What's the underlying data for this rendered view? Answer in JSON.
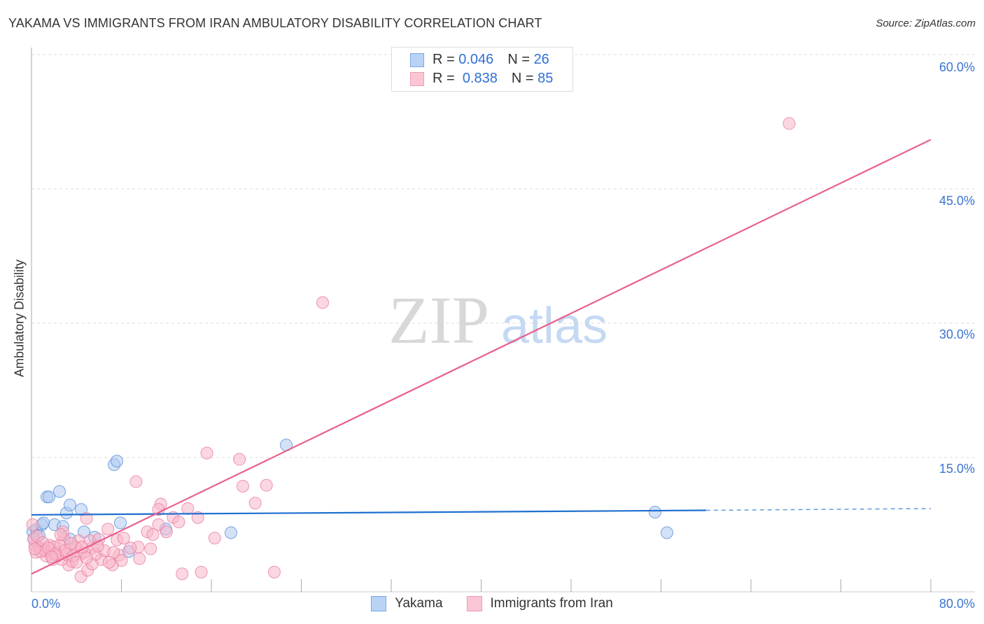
{
  "title": "YAKAMA VS IMMIGRANTS FROM IRAN AMBULATORY DISABILITY CORRELATION CHART",
  "source": "Source: ZipAtlas.com",
  "watermark": "ZIPatlas",
  "legend": {
    "rows": [
      {
        "r_label": "R =",
        "r": "0.046",
        "n_label": "N =",
        "n": "26"
      },
      {
        "r_label": "R =",
        "r": "0.838",
        "n_label": "N =",
        "n": "85"
      }
    ]
  },
  "chart_data": {
    "type": "scatter",
    "title": "YAKAMA VS IMMIGRANTS FROM IRAN AMBULATORY DISABILITY CORRELATION CHART",
    "xlabel": "",
    "ylabel": "Ambulatory Disability",
    "xlim": [
      0,
      80
    ],
    "ylim": [
      0,
      62
    ],
    "x_tick_labels": [
      "0.0%",
      "80.0%"
    ],
    "y_ticks": [
      15,
      30,
      45,
      60
    ],
    "y_tick_labels": [
      "15.0%",
      "30.0%",
      "45.0%",
      "60.0%"
    ],
    "grid": true,
    "legend_position": "bottom",
    "series": [
      {
        "name": "Yakama",
        "color": "#5b8fd8",
        "fill": "#aecbf0",
        "line_color": "#1f6fd0",
        "trend": {
          "x0": 0,
          "y0": 8.6,
          "x1": 60,
          "y1": 9.1,
          "dash_to_x": 80,
          "dash_to_y": 9.3
        },
        "points": [
          [
            0.12,
            6.7
          ],
          [
            0.44,
            6.95
          ],
          [
            0.93,
            7.5
          ],
          [
            1.37,
            10.6
          ],
          [
            1.56,
            10.6
          ],
          [
            2.05,
            7.5
          ],
          [
            2.49,
            11.2
          ],
          [
            2.8,
            7.3
          ],
          [
            3.11,
            8.8
          ],
          [
            3.42,
            9.7
          ],
          [
            4.42,
            9.2
          ],
          [
            4.67,
            6.7
          ],
          [
            5.6,
            6.1
          ],
          [
            7.35,
            14.2
          ],
          [
            7.6,
            14.6
          ],
          [
            7.91,
            7.7
          ],
          [
            8.65,
            4.5
          ],
          [
            11.95,
            7.0
          ],
          [
            17.74,
            6.6
          ],
          [
            22.66,
            16.4
          ],
          [
            55.47,
            8.9
          ],
          [
            56.53,
            6.6
          ],
          [
            0.19,
            5.9
          ],
          [
            0.68,
            6.3
          ],
          [
            1.06,
            7.7
          ],
          [
            3.42,
            5.9
          ]
        ]
      },
      {
        "name": "Immigrants from Iran",
        "color": "#e87ea0",
        "fill": "#f7b6c8",
        "line_color": "#e8608d",
        "trend": {
          "x0": 0,
          "y0": 2.0,
          "x1": 80,
          "y1": 50.5
        },
        "points": [
          [
            67.4,
            52.3
          ],
          [
            25.9,
            32.3
          ],
          [
            15.6,
            15.5
          ],
          [
            18.5,
            14.8
          ],
          [
            9.3,
            12.3
          ],
          [
            18.8,
            11.8
          ],
          [
            20.9,
            11.9
          ],
          [
            19.9,
            9.9
          ],
          [
            11.5,
            9.8
          ],
          [
            11.3,
            9.2
          ],
          [
            13.9,
            9.3
          ],
          [
            14.8,
            8.3
          ],
          [
            12.6,
            8.3
          ],
          [
            13.1,
            7.8
          ],
          [
            11.3,
            7.5
          ],
          [
            12.0,
            6.7
          ],
          [
            10.3,
            6.7
          ],
          [
            10.8,
            6.4
          ],
          [
            16.3,
            6.0
          ],
          [
            13.4,
            2.0
          ],
          [
            15.1,
            2.2
          ],
          [
            21.6,
            2.2
          ],
          [
            4.9,
            8.2
          ],
          [
            6.8,
            7.0
          ],
          [
            7.6,
            5.8
          ],
          [
            8.2,
            6.0
          ],
          [
            9.5,
            5.0
          ],
          [
            10.6,
            4.8
          ],
          [
            7.8,
            4.1
          ],
          [
            7.2,
            3.0
          ],
          [
            6.2,
            3.6
          ],
          [
            4.4,
            1.7
          ],
          [
            5.0,
            2.4
          ],
          [
            5.4,
            3.1
          ],
          [
            3.3,
            3.0
          ],
          [
            3.6,
            3.4
          ],
          [
            4.4,
            4.2
          ],
          [
            5.4,
            4.9
          ],
          [
            5.2,
            5.7
          ],
          [
            4.2,
            5.7
          ],
          [
            2.9,
            5.9
          ],
          [
            2.8,
            6.7
          ],
          [
            2.5,
            5.2
          ],
          [
            2.2,
            4.4
          ],
          [
            1.7,
            4.4
          ],
          [
            1.3,
            4.0
          ],
          [
            0.9,
            4.8
          ],
          [
            0.6,
            5.0
          ],
          [
            0.3,
            5.2
          ],
          [
            0.2,
            5.9
          ],
          [
            0.1,
            7.5
          ],
          [
            0.4,
            4.4
          ],
          [
            1.6,
            5.2
          ],
          [
            1.9,
            3.6
          ],
          [
            2.7,
            3.6
          ],
          [
            3.1,
            4.2
          ],
          [
            3.4,
            4.8
          ],
          [
            3.9,
            5.0
          ],
          [
            4.7,
            4.4
          ],
          [
            5.7,
            4.2
          ],
          [
            6.5,
            4.6
          ],
          [
            7.3,
            4.4
          ],
          [
            6.0,
            5.9
          ],
          [
            9.6,
            3.7
          ],
          [
            0.5,
            6.2
          ],
          [
            1.0,
            5.5
          ],
          [
            1.2,
            4.6
          ],
          [
            2.0,
            5.0
          ],
          [
            2.3,
            4.0
          ],
          [
            2.6,
            6.4
          ],
          [
            3.0,
            4.6
          ],
          [
            3.7,
            4.0
          ],
          [
            4.0,
            3.3
          ],
          [
            4.9,
            3.8
          ],
          [
            5.9,
            5.1
          ],
          [
            6.9,
            3.3
          ],
          [
            8.0,
            3.5
          ],
          [
            8.8,
            4.9
          ],
          [
            0.8,
            4.5
          ],
          [
            1.5,
            4.9
          ],
          [
            2.1,
            4.2
          ],
          [
            3.5,
            5.4
          ],
          [
            4.5,
            5.0
          ],
          [
            0.3,
            4.8
          ],
          [
            1.8,
            3.9
          ]
        ]
      }
    ]
  }
}
